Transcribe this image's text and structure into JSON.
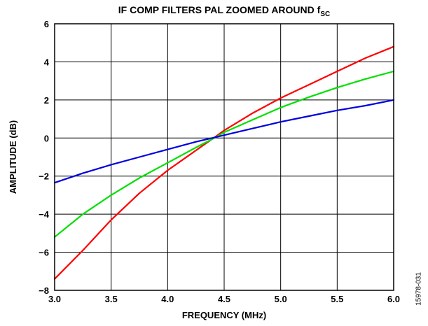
{
  "chart_data": {
    "type": "line",
    "title_main": "IF COMP FILTERS PAL ZOOMED AROUND f",
    "title_sub": "SC",
    "xlabel": "FREQUENCY (MHz)",
    "ylabel": "AMPLITUDE (dB)",
    "xlim": [
      3.0,
      6.0
    ],
    "ylim": [
      -8,
      6
    ],
    "x_ticks": [
      "3.0",
      "3.5",
      "4.0",
      "4.5",
      "5.0",
      "5.5",
      "6.0"
    ],
    "y_ticks": [
      "6",
      "4",
      "2",
      "0",
      "−2",
      "−4",
      "−6",
      "−8"
    ],
    "grid": true,
    "series": [
      {
        "color": "#ff0000",
        "x": [
          3.0,
          3.25,
          3.5,
          3.75,
          4.0,
          4.25,
          4.43,
          4.5,
          4.75,
          5.0,
          5.25,
          5.5,
          5.75,
          6.0
        ],
        "y": [
          -7.4,
          -5.9,
          -4.3,
          -2.9,
          -1.7,
          -0.65,
          0.1,
          0.4,
          1.3,
          2.1,
          2.8,
          3.5,
          4.2,
          4.8
        ]
      },
      {
        "color": "#00e000",
        "x": [
          3.0,
          3.25,
          3.5,
          3.75,
          4.0,
          4.25,
          4.43,
          4.5,
          4.75,
          5.0,
          5.25,
          5.5,
          5.75,
          6.0
        ],
        "y": [
          -5.2,
          -4.0,
          -3.0,
          -2.1,
          -1.3,
          -0.5,
          0.05,
          0.3,
          0.95,
          1.6,
          2.15,
          2.65,
          3.1,
          3.5
        ]
      },
      {
        "color": "#0000e0",
        "x": [
          3.0,
          3.25,
          3.5,
          3.75,
          4.0,
          4.25,
          4.43,
          4.5,
          4.75,
          5.0,
          5.25,
          5.5,
          5.75,
          6.0
        ],
        "y": [
          -2.35,
          -1.85,
          -1.4,
          -1.0,
          -0.6,
          -0.2,
          0.05,
          0.15,
          0.5,
          0.85,
          1.15,
          1.45,
          1.7,
          2.0
        ]
      }
    ],
    "figure_id": "15978-031"
  }
}
